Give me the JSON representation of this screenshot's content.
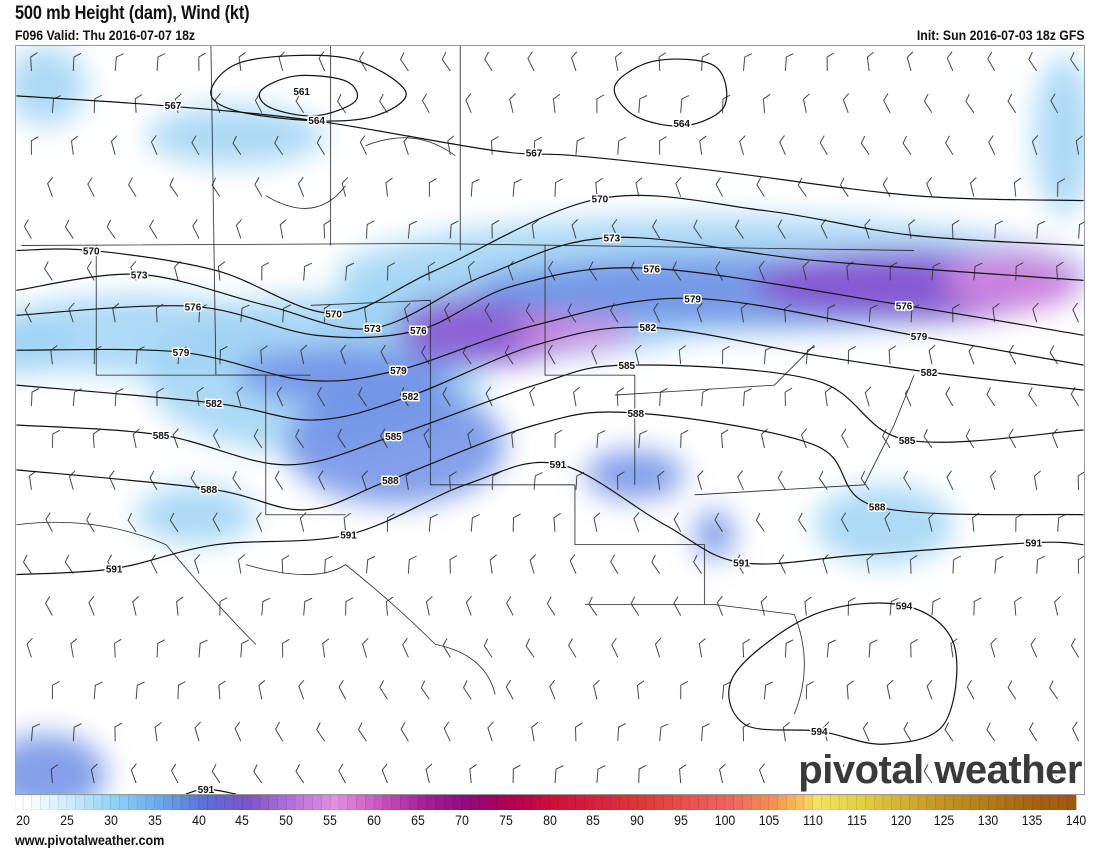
{
  "header": {
    "title": "500 mb Height (dam), Wind (kt)",
    "valid": "F096 Valid: Thu 2016-07-07 18z",
    "init": "Init: Sun 2016-07-03 18z GFS"
  },
  "map": {
    "contour_labels": {
      "561": [
        "561"
      ],
      "564": [
        "564",
        "564"
      ],
      "567": [
        "567",
        "567"
      ],
      "570": [
        "570",
        "570",
        "570"
      ],
      "573": [
        "573",
        "573",
        "573"
      ],
      "576": [
        "576",
        "576",
        "576",
        "576"
      ],
      "579": [
        "579",
        "579",
        "579",
        "579"
      ],
      "582": [
        "582",
        "582",
        "582",
        "582"
      ],
      "585": [
        "585",
        "585",
        "585",
        "585"
      ],
      "588": [
        "588",
        "588",
        "588",
        "588"
      ],
      "591": [
        "591",
        "591",
        "591",
        "591",
        "591",
        "591"
      ],
      "594": [
        "594",
        "594"
      ]
    },
    "contour_color": "#111111",
    "wind_shading_colors": {
      "light": "#9fd3f5",
      "mid": "#6e8fe6",
      "strong": "#8a4fd0",
      "max": "#d58ae0"
    }
  },
  "colorbar": {
    "ticks": [
      "20",
      "25",
      "30",
      "35",
      "40",
      "45",
      "50",
      "55",
      "60",
      "65",
      "70",
      "75",
      "80",
      "85",
      "90",
      "95",
      "100",
      "105",
      "110",
      "115",
      "120",
      "125",
      "130",
      "135",
      "140"
    ],
    "colors": [
      "#ffffff",
      "#cde9fb",
      "#8fd0f6",
      "#6aa9ec",
      "#5b70d9",
      "#7b55cc",
      "#b070d8",
      "#e190e0",
      "#cc55c0",
      "#a8209a",
      "#900a80",
      "#b0004f",
      "#d0103a",
      "#d82242",
      "#dd3838",
      "#e85050",
      "#f06262",
      "#f59050",
      "#f5e060",
      "#e0d040",
      "#d0b030",
      "#c09020",
      "#b07818",
      "#a86010",
      "#9c5a10"
    ]
  },
  "footer": {
    "url": "www.pivotalweather.com",
    "logo": "pivotal weather"
  }
}
